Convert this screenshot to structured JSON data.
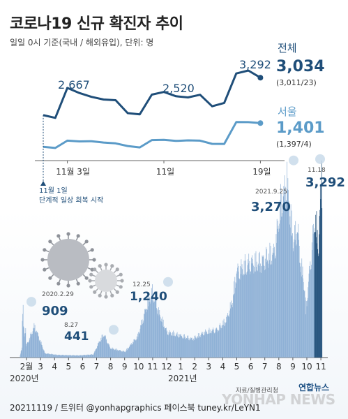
{
  "title": "코로나19 신규 확진자 추이",
  "subtitle": "일일 0시 기준(국내 / 해외유입), 단위: 명",
  "footer": "20211119 / 트위터 @yonhapgraphics 페이스북 tuney.kr/LeYN1",
  "source": "자료/질병관리청",
  "logo": "연합뉴스",
  "watermark": "YONHAP NEWS",
  "colors": {
    "total": "#1f4e79",
    "seoul": "#5b9bc8",
    "bars": "#8fb1d6",
    "recent_bars": "#1f4e79"
  },
  "chart_data": [
    {
      "type": "line",
      "title": "",
      "x_ticks": [
        "11월 3일",
        "11일",
        "19일"
      ],
      "x_tick_index": [
        2,
        10,
        18
      ],
      "x": [
        "11.1",
        "11.2",
        "11.3",
        "11.4",
        "11.5",
        "11.6",
        "11.7",
        "11.8",
        "11.9",
        "11.10",
        "11.11",
        "11.12",
        "11.13",
        "11.14",
        "11.15",
        "11.16",
        "11.17",
        "11.18",
        "11.19"
      ],
      "annotation": {
        "line1": "11월 1일",
        "line2": "단계적 일상 회복 시작"
      },
      "ylim": [
        0,
        3500
      ],
      "series": [
        {
          "name": "전체",
          "values": [
            1686,
            1589,
            2667,
            2482,
            2344,
            2248,
            2224,
            1758,
            1715,
            2425,
            2520,
            2368,
            2324,
            2419,
            2006,
            2125,
            3187,
            3292,
            3034
          ],
          "labels": {
            "2": "2,667",
            "10": "2,520",
            "17": "3,292"
          },
          "last_value": "3,034",
          "last_detail": "(3,011/23)"
        },
        {
          "name": "서울",
          "values": [
            548,
            504,
            770,
            740,
            750,
            700,
            672,
            576,
            525,
            788,
            800,
            758,
            780,
            770,
            654,
            651,
            1436,
            1434,
            1401
          ],
          "last_value": "1,401",
          "last_detail": "(1,397/4)"
        }
      ]
    },
    {
      "type": "bar",
      "title": "",
      "ylim": [
        0,
        3500
      ],
      "x_ticks": [
        "2월",
        "3",
        "4",
        "5",
        "6",
        "7",
        "8",
        "9",
        "10",
        "11",
        "12",
        "1",
        "2",
        "3",
        "4",
        "5",
        "6",
        "7",
        "8",
        "9",
        "10",
        "11"
      ],
      "year_labels": {
        "0": "2020년",
        "11": "2021년"
      },
      "peaks": [
        {
          "date": "2020.2.29",
          "value": 909,
          "label": "909"
        },
        {
          "date": "8.27",
          "value": 441,
          "label": "441"
        },
        {
          "date": "12.25",
          "value": 1240,
          "label": "1,240"
        },
        {
          "date": "2021.9.25",
          "value": 3270,
          "label": "3,270"
        },
        {
          "date": "11.18",
          "value": 3292,
          "label": "3,292"
        }
      ]
    }
  ]
}
